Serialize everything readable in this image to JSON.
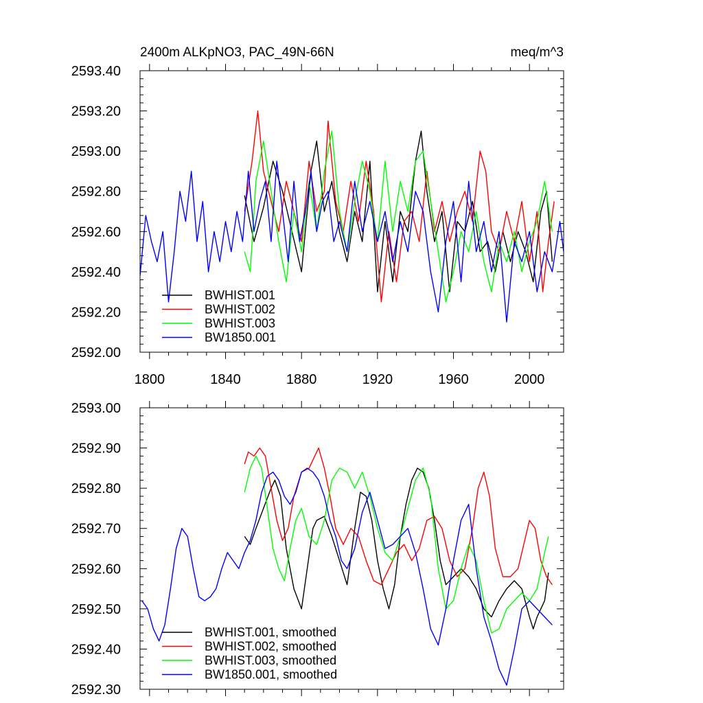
{
  "chart_data": [
    {
      "type": "line",
      "title": "2400m ALKpNO3, PAC_49N-66N",
      "units": "meq/m^3",
      "xlim": [
        1795,
        2018
      ],
      "xticks": [
        1800,
        1840,
        1880,
        1920,
        1960,
        2000
      ],
      "ylim": [
        2592.0,
        2593.4
      ],
      "yticks": [
        "2592.00",
        "2592.20",
        "2592.40",
        "2592.60",
        "2592.80",
        "2593.00",
        "2593.20",
        "2593.40"
      ],
      "legend_position": "bottom-left",
      "series": [
        {
          "name": "BWHIST.001",
          "color": "#000000",
          "x": [
            1850,
            1855,
            1860,
            1865,
            1870,
            1875,
            1880,
            1885,
            1888,
            1892,
            1896,
            1900,
            1904,
            1908,
            1912,
            1916,
            1920,
            1924,
            1928,
            1932,
            1936,
            1940,
            1943,
            1946,
            1950,
            1954,
            1958,
            1962,
            1966,
            1970,
            1974,
            1978,
            1982,
            1986,
            1990,
            1994,
            1998,
            2002,
            2006,
            2009,
            2012
          ],
          "y": [
            2592.78,
            2592.55,
            2592.72,
            2592.95,
            2592.8,
            2592.6,
            2592.4,
            2592.9,
            2593.05,
            2592.7,
            2592.85,
            2592.6,
            2592.45,
            2592.7,
            2592.55,
            2592.95,
            2592.3,
            2592.65,
            2592.35,
            2592.7,
            2592.6,
            2592.95,
            2593.1,
            2592.8,
            2592.55,
            2592.7,
            2592.3,
            2592.65,
            2592.6,
            2592.75,
            2592.5,
            2592.55,
            2592.4,
            2592.6,
            2592.45,
            2592.6,
            2592.5,
            2592.35,
            2592.7,
            2592.8,
            2592.45
          ]
        },
        {
          "name": "BWHIST.002",
          "color": "#ff0000",
          "x": [
            1850,
            1854,
            1857,
            1860,
            1864,
            1868,
            1872,
            1876,
            1880,
            1884,
            1888,
            1892,
            1894,
            1898,
            1902,
            1906,
            1910,
            1914,
            1918,
            1922,
            1926,
            1930,
            1934,
            1938,
            1942,
            1946,
            1950,
            1954,
            1958,
            1962,
            1966,
            1970,
            1974,
            1977,
            1980,
            1984,
            1988,
            1992,
            1996,
            2000,
            2004,
            2007,
            2010,
            2013
          ],
          "y": [
            2592.7,
            2592.95,
            2593.2,
            2592.9,
            2592.75,
            2592.6,
            2592.85,
            2592.7,
            2592.55,
            2592.95,
            2592.7,
            2592.8,
            2593.15,
            2592.75,
            2592.6,
            2592.85,
            2592.65,
            2592.95,
            2592.7,
            2592.25,
            2592.6,
            2592.35,
            2592.65,
            2592.7,
            2592.55,
            2592.9,
            2592.6,
            2592.75,
            2592.55,
            2592.7,
            2592.8,
            2592.65,
            2593.0,
            2592.9,
            2592.6,
            2592.5,
            2592.7,
            2592.55,
            2592.75,
            2592.45,
            2592.7,
            2592.3,
            2592.55,
            2592.75
          ]
        },
        {
          "name": "BWHIST.003",
          "color": "#00ff00",
          "x": [
            1850,
            1853,
            1856,
            1860,
            1864,
            1868,
            1872,
            1876,
            1880,
            1884,
            1888,
            1892,
            1896,
            1900,
            1904,
            1908,
            1912,
            1916,
            1920,
            1924,
            1928,
            1932,
            1936,
            1940,
            1944,
            1948,
            1952,
            1956,
            1960,
            1964,
            1968,
            1972,
            1976,
            1980,
            1984,
            1988,
            1992,
            1996,
            2000,
            2004,
            2008,
            2012
          ],
          "y": [
            2592.5,
            2592.4,
            2592.85,
            2593.05,
            2592.8,
            2592.55,
            2592.35,
            2592.7,
            2592.5,
            2592.85,
            2592.6,
            2592.9,
            2593.1,
            2592.7,
            2592.5,
            2592.75,
            2592.95,
            2592.8,
            2592.55,
            2592.95,
            2592.6,
            2592.85,
            2592.7,
            2592.95,
            2593.0,
            2592.75,
            2592.5,
            2592.25,
            2592.4,
            2592.6,
            2592.5,
            2592.7,
            2592.45,
            2592.3,
            2592.55,
            2592.45,
            2592.6,
            2592.4,
            2592.55,
            2592.65,
            2592.85,
            2592.6
          ]
        },
        {
          "name": "BW1850.001",
          "color": "#0000ff",
          "x": [
            1795,
            1798,
            1801,
            1804,
            1807,
            1810,
            1813,
            1816,
            1819,
            1822,
            1825,
            1828,
            1831,
            1834,
            1837,
            1840,
            1843,
            1846,
            1849,
            1852,
            1855,
            1858,
            1861,
            1864,
            1867,
            1870,
            1873,
            1876,
            1879,
            1882,
            1885,
            1888,
            1891,
            1894,
            1897,
            1900,
            1904,
            1908,
            1912,
            1916,
            1920,
            1924,
            1928,
            1932,
            1936,
            1940,
            1944,
            1948,
            1952,
            1956,
            1960,
            1964,
            1968,
            1972,
            1976,
            1980,
            1984,
            1988,
            1992,
            1996,
            2000,
            2004,
            2008,
            2012,
            2016,
            2018
          ],
          "y": [
            2592.38,
            2592.68,
            2592.55,
            2592.45,
            2592.6,
            2592.25,
            2592.5,
            2592.8,
            2592.65,
            2592.9,
            2592.55,
            2592.75,
            2592.4,
            2592.6,
            2592.45,
            2592.65,
            2592.5,
            2592.7,
            2592.55,
            2592.9,
            2592.6,
            2592.75,
            2592.85,
            2592.55,
            2592.95,
            2592.7,
            2592.45,
            2592.85,
            2592.55,
            2592.7,
            2592.9,
            2592.6,
            2592.75,
            2592.8,
            2592.55,
            2592.65,
            2592.5,
            2592.85,
            2592.6,
            2592.75,
            2592.55,
            2592.7,
            2592.45,
            2592.65,
            2592.5,
            2592.8,
            2592.7,
            2592.4,
            2592.2,
            2592.55,
            2592.75,
            2592.35,
            2592.85,
            2592.5,
            2592.65,
            2592.4,
            2592.6,
            2592.15,
            2592.55,
            2592.45,
            2592.6,
            2592.3,
            2592.5,
            2592.4,
            2592.65,
            2592.5
          ]
        }
      ]
    },
    {
      "type": "line",
      "title": "",
      "xlim": [
        1795,
        2018
      ],
      "ylim": [
        2592.3,
        2593.0
      ],
      "yticks": [
        "2592.30",
        "2592.40",
        "2592.50",
        "2592.60",
        "2592.70",
        "2592.80",
        "2592.90",
        "2593.00"
      ],
      "legend_position": "bottom-left",
      "series": [
        {
          "name": "BWHIST.001, smoothed",
          "color": "#000000",
          "x": [
            1850,
            1853,
            1856,
            1860,
            1864,
            1866,
            1869,
            1872,
            1876,
            1880,
            1883,
            1886,
            1888,
            1892,
            1896,
            1900,
            1904,
            1908,
            1911,
            1914,
            1917,
            1920,
            1923,
            1926,
            1929,
            1932,
            1935,
            1938,
            1941,
            1944,
            1947,
            1950,
            1953,
            1956,
            1960,
            1964,
            1968,
            1972,
            1976,
            1980,
            1984,
            1988,
            1992,
            1996,
            2000,
            2002,
            2004,
            2006,
            2008,
            2010
          ],
          "y": [
            2592.68,
            2592.66,
            2592.7,
            2592.75,
            2592.8,
            2592.82,
            2592.78,
            2592.65,
            2592.55,
            2592.5,
            2592.6,
            2592.7,
            2592.72,
            2592.73,
            2592.68,
            2592.62,
            2592.56,
            2592.7,
            2592.79,
            2592.78,
            2592.72,
            2592.62,
            2592.55,
            2592.5,
            2592.56,
            2592.68,
            2592.76,
            2592.82,
            2592.85,
            2592.84,
            2592.8,
            2592.72,
            2592.62,
            2592.56,
            2592.58,
            2592.6,
            2592.58,
            2592.55,
            2592.5,
            2592.48,
            2592.52,
            2592.55,
            2592.57,
            2592.55,
            2592.48,
            2592.45,
            2592.48,
            2592.5,
            2592.52,
            2592.59
          ]
        },
        {
          "name": "BWHIST.002, smoothed",
          "color": "#ff0000",
          "x": [
            1850,
            1852,
            1855,
            1858,
            1861,
            1864,
            1867,
            1870,
            1873,
            1876,
            1880,
            1884,
            1887,
            1889,
            1892,
            1895,
            1898,
            1902,
            1906,
            1910,
            1914,
            1918,
            1922,
            1926,
            1930,
            1934,
            1938,
            1942,
            1946,
            1950,
            1954,
            1958,
            1962,
            1966,
            1970,
            1973,
            1976,
            1979,
            1982,
            1986,
            1990,
            1994,
            1998,
            2000,
            2003,
            2006,
            2009,
            2012
          ],
          "y": [
            2592.86,
            2592.89,
            2592.88,
            2592.9,
            2592.88,
            2592.8,
            2592.72,
            2592.67,
            2592.7,
            2592.78,
            2592.84,
            2592.85,
            2592.88,
            2592.9,
            2592.85,
            2592.78,
            2592.7,
            2592.66,
            2592.7,
            2592.68,
            2592.62,
            2592.57,
            2592.56,
            2592.6,
            2592.64,
            2592.66,
            2592.62,
            2592.65,
            2592.72,
            2592.73,
            2592.7,
            2592.62,
            2592.58,
            2592.6,
            2592.7,
            2592.8,
            2592.84,
            2592.78,
            2592.65,
            2592.58,
            2592.58,
            2592.6,
            2592.68,
            2592.72,
            2592.7,
            2592.62,
            2592.58,
            2592.56
          ]
        },
        {
          "name": "BWHIST.003, smoothed",
          "color": "#00ff00",
          "x": [
            1850,
            1853,
            1856,
            1859,
            1862,
            1865,
            1868,
            1871,
            1874,
            1877,
            1880,
            1884,
            1888,
            1892,
            1896,
            1900,
            1904,
            1908,
            1912,
            1916,
            1920,
            1924,
            1928,
            1932,
            1936,
            1940,
            1944,
            1948,
            1952,
            1956,
            1960,
            1964,
            1968,
            1972,
            1976,
            1980,
            1984,
            1988,
            1992,
            1996,
            2000,
            2004,
            2008,
            2010
          ],
          "y": [
            2592.79,
            2592.85,
            2592.88,
            2592.85,
            2592.75,
            2592.65,
            2592.6,
            2592.57,
            2592.65,
            2592.72,
            2592.75,
            2592.68,
            2592.66,
            2592.72,
            2592.82,
            2592.85,
            2592.84,
            2592.8,
            2592.84,
            2592.78,
            2592.7,
            2592.64,
            2592.62,
            2592.68,
            2592.75,
            2592.82,
            2592.85,
            2592.78,
            2592.6,
            2592.5,
            2592.52,
            2592.6,
            2592.66,
            2592.62,
            2592.52,
            2592.44,
            2592.45,
            2592.5,
            2592.52,
            2592.54,
            2592.52,
            2592.55,
            2592.64,
            2592.68
          ]
        },
        {
          "name": "BW1850.001, smoothed",
          "color": "#0000ff",
          "x": [
            1796,
            1799,
            1802,
            1805,
            1808,
            1811,
            1814,
            1817,
            1820,
            1823,
            1826,
            1829,
            1832,
            1835,
            1838,
            1841,
            1844,
            1847,
            1850,
            1853,
            1856,
            1859,
            1862,
            1865,
            1868,
            1871,
            1874,
            1877,
            1880,
            1883,
            1886,
            1889,
            1892,
            1895,
            1898,
            1901,
            1904,
            1908,
            1912,
            1916,
            1920,
            1924,
            1928,
            1932,
            1936,
            1940,
            1944,
            1948,
            1952,
            1956,
            1960,
            1964,
            1968,
            1972,
            1976,
            1980,
            1984,
            1988,
            1992,
            1996,
            2000,
            2004,
            2008,
            2012
          ],
          "y": [
            2592.52,
            2592.5,
            2592.45,
            2592.42,
            2592.46,
            2592.55,
            2592.65,
            2592.7,
            2592.68,
            2592.6,
            2592.53,
            2592.52,
            2592.53,
            2592.55,
            2592.6,
            2592.64,
            2592.62,
            2592.6,
            2592.64,
            2592.67,
            2592.72,
            2592.79,
            2592.83,
            2592.84,
            2592.82,
            2592.78,
            2592.76,
            2592.79,
            2592.84,
            2592.85,
            2592.84,
            2592.82,
            2592.78,
            2592.72,
            2592.68,
            2592.62,
            2592.6,
            2592.65,
            2592.74,
            2592.79,
            2592.72,
            2592.65,
            2592.66,
            2592.68,
            2592.7,
            2592.64,
            2592.55,
            2592.45,
            2592.41,
            2592.5,
            2592.62,
            2592.72,
            2592.76,
            2592.6,
            2592.48,
            2592.42,
            2592.35,
            2592.31,
            2592.4,
            2592.5,
            2592.52,
            2592.5,
            2592.48,
            2592.46
          ]
        }
      ]
    }
  ]
}
